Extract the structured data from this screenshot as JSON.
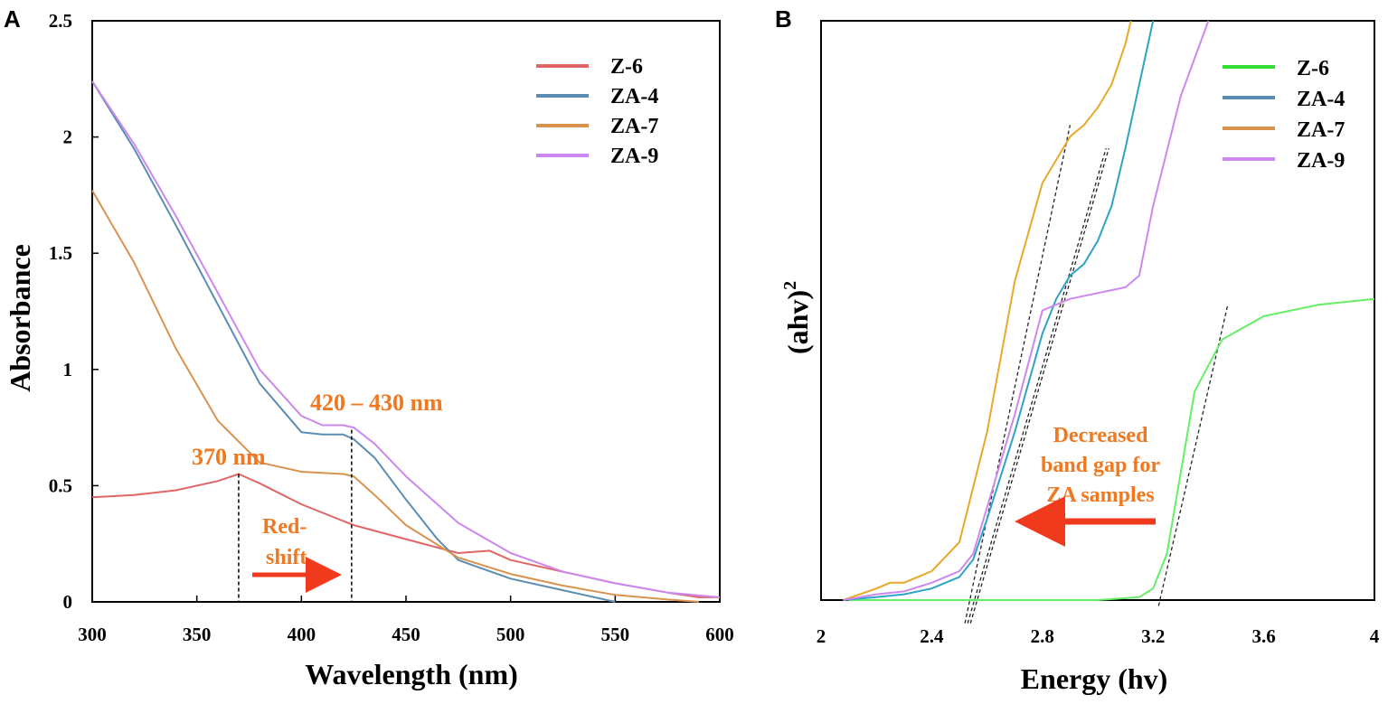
{
  "colors": {
    "Z-6": "#e06666",
    "ZA-4": "#5b8db3",
    "ZA-7": "#d9934f",
    "ZA-9": "#cc88ee",
    "annot": "#f07820",
    "arrow": "#f03a1e",
    "B_Z-6": "#66ee66",
    "B_ZA-4": "#2fa3c6",
    "B_ZA-7": "#e8a82a",
    "B_ZA-9": "#cc88ee"
  },
  "chart_data": [
    {
      "panel": "A",
      "type": "line",
      "xlabel": "Wavelength (nm)",
      "ylabel": "Absorbance",
      "xlim": [
        300,
        600
      ],
      "ylim": [
        0,
        2.5
      ],
      "xticks": [
        "300",
        "350",
        "400",
        "450",
        "500",
        "550",
        "600"
      ],
      "yticks": [
        "0",
        "0.5",
        "1",
        "1.5",
        "2",
        "2.5"
      ],
      "legend": [
        "Z-6",
        "ZA-4",
        "ZA-7",
        "ZA-9"
      ],
      "series": [
        {
          "name": "Z-6",
          "x": [
            300,
            320,
            340,
            360,
            370,
            380,
            400,
            425,
            450,
            475,
            490,
            500,
            525,
            550,
            575,
            590,
            600
          ],
          "y": [
            0.45,
            0.46,
            0.48,
            0.52,
            0.55,
            0.51,
            0.42,
            0.33,
            0.27,
            0.21,
            0.22,
            0.18,
            0.13,
            0.08,
            0.04,
            0.02,
            0.02
          ]
        },
        {
          "name": "ZA-4",
          "x": [
            300,
            320,
            340,
            360,
            380,
            400,
            410,
            420,
            425,
            435,
            450,
            465,
            475,
            500,
            525,
            550
          ],
          "y": [
            2.24,
            1.95,
            1.62,
            1.28,
            0.94,
            0.73,
            0.72,
            0.72,
            0.7,
            0.62,
            0.44,
            0.27,
            0.18,
            0.1,
            0.05,
            0.0
          ]
        },
        {
          "name": "ZA-7",
          "x": [
            300,
            320,
            340,
            360,
            380,
            400,
            420,
            425,
            435,
            450,
            475,
            500,
            525,
            550,
            575,
            590
          ],
          "y": [
            1.77,
            1.46,
            1.09,
            0.78,
            0.6,
            0.56,
            0.55,
            0.54,
            0.46,
            0.33,
            0.19,
            0.12,
            0.07,
            0.03,
            0.01,
            0.0
          ]
        },
        {
          "name": "ZA-9",
          "x": [
            300,
            320,
            340,
            360,
            380,
            400,
            410,
            420,
            425,
            435,
            450,
            475,
            500,
            525,
            550,
            575,
            600
          ],
          "y": [
            2.24,
            1.97,
            1.66,
            1.33,
            1.0,
            0.8,
            0.76,
            0.76,
            0.75,
            0.68,
            0.54,
            0.34,
            0.21,
            0.13,
            0.08,
            0.04,
            0.02
          ]
        }
      ],
      "annotations": {
        "peak1": "370 nm",
        "peak2": "420 – 430 nm",
        "shift_line1": "Red-",
        "shift_line2": "shift",
        "vline1_x": 370,
        "vline2_x": 424
      }
    },
    {
      "panel": "B",
      "type": "line",
      "xlabel": "Energy (hv)",
      "ylabel": "(ahv)²",
      "ylabel_main": "(ahv)",
      "ylabel_sup": "2",
      "xlim": [
        2,
        4
      ],
      "ylim": [
        0,
        1
      ],
      "xticks": [
        "2",
        "2.4",
        "2.8",
        "3.2",
        "3.6",
        "4"
      ],
      "legend": [
        "Z-6",
        "ZA-4",
        "ZA-7",
        "ZA-9"
      ],
      "series": [
        {
          "name": "Z-6",
          "x": [
            2.1,
            2.5,
            3.0,
            3.15,
            3.2,
            3.25,
            3.3,
            3.35,
            3.45,
            3.6,
            3.8,
            4.0
          ],
          "y": [
            0.0,
            0.0,
            0.0,
            0.005,
            0.02,
            0.08,
            0.22,
            0.36,
            0.45,
            0.49,
            0.51,
            0.52
          ]
        },
        {
          "name": "ZA-4",
          "x": [
            2.08,
            2.2,
            2.3,
            2.4,
            2.5,
            2.55,
            2.6,
            2.7,
            2.8,
            2.85,
            2.9,
            2.95,
            3.0,
            3.05,
            3.1,
            3.2
          ],
          "y": [
            0.0,
            0.005,
            0.01,
            0.02,
            0.04,
            0.07,
            0.14,
            0.29,
            0.46,
            0.52,
            0.56,
            0.58,
            0.62,
            0.68,
            0.78,
            1.0
          ]
        },
        {
          "name": "ZA-7",
          "x": [
            2.08,
            2.2,
            2.25,
            2.3,
            2.4,
            2.5,
            2.6,
            2.7,
            2.8,
            2.9,
            2.95,
            3.0,
            3.05,
            3.1,
            3.12
          ],
          "y": [
            0.0,
            0.02,
            0.03,
            0.03,
            0.05,
            0.1,
            0.29,
            0.55,
            0.72,
            0.8,
            0.82,
            0.85,
            0.89,
            0.96,
            1.0
          ]
        },
        {
          "name": "ZA-9",
          "x": [
            2.08,
            2.2,
            2.3,
            2.4,
            2.5,
            2.55,
            2.6,
            2.7,
            2.8,
            2.9,
            3.0,
            3.1,
            3.15,
            3.2,
            3.3,
            3.4
          ],
          "y": [
            0.0,
            0.01,
            0.015,
            0.03,
            0.05,
            0.08,
            0.16,
            0.32,
            0.5,
            0.52,
            0.53,
            0.54,
            0.56,
            0.68,
            0.87,
            1.0
          ]
        }
      ],
      "tangents": [
        {
          "x": [
            2.52,
            2.9
          ],
          "y": [
            -0.04,
            0.82
          ]
        },
        {
          "x": [
            2.53,
            3.03
          ],
          "y": [
            -0.04,
            0.78
          ]
        },
        {
          "x": [
            2.54,
            3.04
          ],
          "y": [
            -0.04,
            0.78
          ]
        },
        {
          "x": [
            3.22,
            3.47
          ],
          "y": [
            -0.01,
            0.51
          ]
        }
      ],
      "annotations": {
        "gap_line1": "Decreased",
        "gap_line2": "band gap for",
        "gap_line3": "ZA samples"
      }
    }
  ],
  "panels": {
    "A": "A",
    "B": "B"
  }
}
